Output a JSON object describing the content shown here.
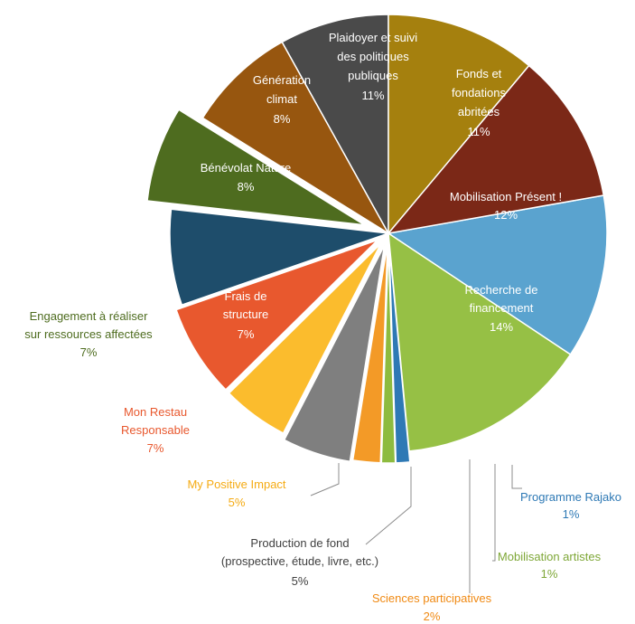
{
  "chart_data": {
    "type": "pie",
    "title": "",
    "start_angle_deg": -10,
    "direction": "clockwise",
    "slices": [
      {
        "label": "Mobilisation Présent !",
        "value": 12,
        "value_label": "12%",
        "color": "#5aa3cf",
        "label_pos": "inside"
      },
      {
        "label": "Recherche de financement",
        "value": 14,
        "value_label": "14%",
        "color": "#96c045",
        "label_pos": "inside"
      },
      {
        "label": "Programme Rajako",
        "value": 1,
        "value_label": "1%",
        "color": "#2e79b5",
        "label_pos": "outside",
        "exploded": true
      },
      {
        "label": "Mobilisation artistes",
        "value": 1,
        "value_label": "1%",
        "color": "#8dbb3f",
        "label_pos": "outside",
        "exploded": true
      },
      {
        "label": "Sciences participatives",
        "value": 2,
        "value_label": "2%",
        "color": "#f39a27",
        "label_pos": "outside",
        "exploded": true
      },
      {
        "label": "Production de fond (prospective, étude, livre, etc.)",
        "value": 5,
        "value_label": "5%",
        "color": "#7f7f7f",
        "label_pos": "outside",
        "exploded": true
      },
      {
        "label": "My Positive Impact",
        "value": 5,
        "value_label": "5%",
        "color": "#fbbc2d",
        "label_pos": "outside",
        "exploded": true
      },
      {
        "label": "Mon Restau Responsable",
        "value": 7,
        "value_label": "7%",
        "color": "#e8582e",
        "label_pos": "outside",
        "exploded": true
      },
      {
        "label": "Frais de structure",
        "value": 7,
        "value_label": "7%",
        "color": "#1e4d6b",
        "label_pos": "inside"
      },
      {
        "label": "Engagement à réaliser sur ressources affectées",
        "value": 7,
        "value_label": "7%",
        "color": "#4e6c1f",
        "label_pos": "outside",
        "exploded": true
      },
      {
        "label": "Bénévolat Nature",
        "value": 8,
        "value_label": "8%",
        "color": "#97560f",
        "label_pos": "inside"
      },
      {
        "label": "Génération climat",
        "value": 8,
        "value_label": "8%",
        "color": "#4a4a4a",
        "label_pos": "inside"
      },
      {
        "label": "Plaidoyer et suivi des politiques publiques",
        "value": 11,
        "value_label": "11%",
        "color": "#a5800e",
        "label_pos": "inside"
      },
      {
        "label": "Fonds et fondations abritées",
        "value": 11,
        "value_label": "11%",
        "color": "#7b2817",
        "label_pos": "inside"
      }
    ]
  }
}
